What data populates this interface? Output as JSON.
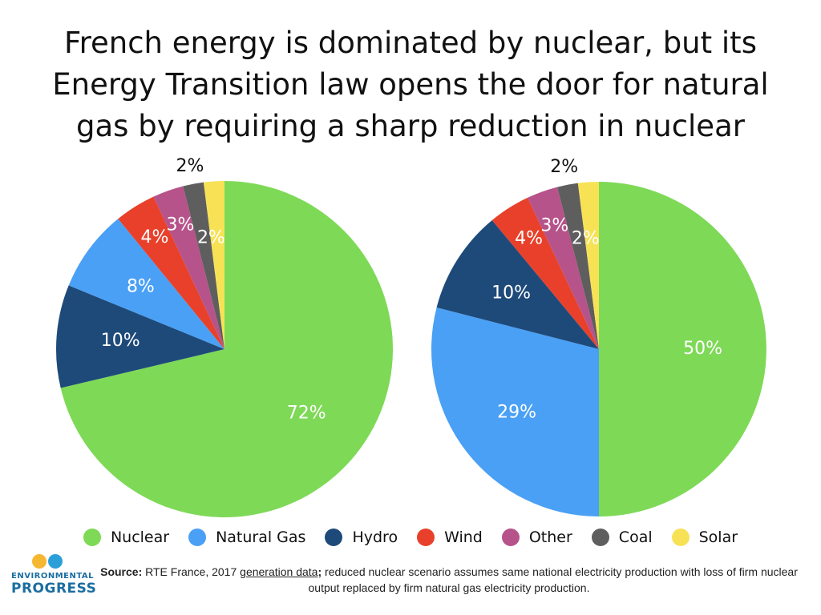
{
  "title_lines": [
    "French energy is dominated by nuclear, but its",
    "Energy Transition law opens the door for natural",
    "gas by requiring a sharp reduction in nuclear"
  ],
  "colors": {
    "Nuclear": "#7ed957",
    "Natural Gas": "#4aa0f5",
    "Hydro": "#1e4a7a",
    "Wind": "#e8402a",
    "Other": "#b6538a",
    "Coal": "#5e5e5e",
    "Solar": "#f7e256"
  },
  "chart_data": [
    {
      "type": "pie",
      "title": "",
      "categories": [
        "Nuclear",
        "Hydro",
        "Natural Gas",
        "Wind",
        "Other",
        "Coal",
        "Solar"
      ],
      "values": [
        72,
        10,
        8,
        4,
        3,
        2,
        2
      ],
      "labels": [
        "72%",
        "10%",
        "8%",
        "4%",
        "3%",
        "2%",
        "2%"
      ]
    },
    {
      "type": "pie",
      "title": "",
      "categories": [
        "Nuclear",
        "Natural Gas",
        "Hydro",
        "Wind",
        "Other",
        "Coal",
        "Solar"
      ],
      "values": [
        50,
        29,
        10,
        4,
        3,
        2,
        2
      ],
      "labels": [
        "50%",
        "29%",
        "10%",
        "4%",
        "3%",
        "2%",
        "2%"
      ]
    }
  ],
  "legend": [
    "Nuclear",
    "Natural Gas",
    "Hydro",
    "Wind",
    "Other",
    "Coal",
    "Solar"
  ],
  "logo": {
    "line1": "ENVIRONMENTAL",
    "line2": "PROGRESS"
  },
  "source": {
    "label": "Source:",
    "text1": " RTE France, 2017 ",
    "link": "generation data",
    "sep": ";",
    "text2": " reduced nuclear scenario assumes same national electricity production with loss of firm nuclear output replaced by firm natural gas electricity production."
  }
}
